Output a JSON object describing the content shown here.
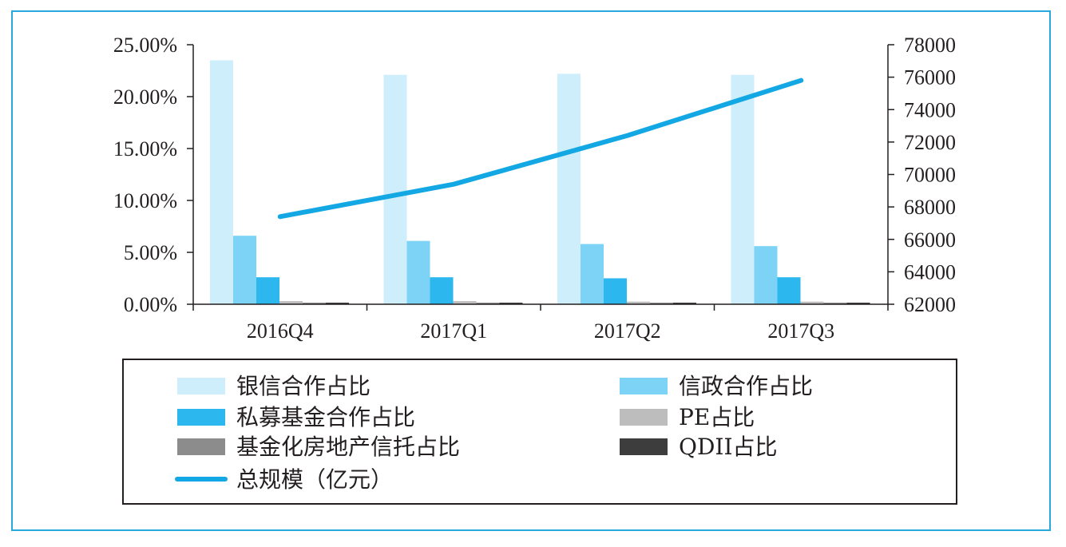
{
  "chart_data": {
    "type": "bar",
    "categories": [
      "2016Q4",
      "2017Q1",
      "2017Q2",
      "2017Q3"
    ],
    "y_left": {
      "ticks": [
        "25.00%",
        "20.00%",
        "15.00%",
        "10.00%",
        "5.00%",
        "0.00%"
      ],
      "ylim": [
        0,
        25
      ]
    },
    "y_right": {
      "ticks": [
        "78000",
        "76000",
        "74000",
        "72000",
        "70000",
        "68000",
        "66000",
        "64000",
        "62000"
      ],
      "ylim": [
        62000,
        78000
      ]
    },
    "series": [
      {
        "name": "银信合作占比",
        "type": "bar",
        "axis": "left",
        "color": "#cdeefa",
        "values": [
          23.5,
          22.1,
          22.2,
          22.1
        ]
      },
      {
        "name": "信政合作占比",
        "type": "bar",
        "axis": "left",
        "color": "#7dd3f6",
        "values": [
          6.6,
          6.1,
          5.8,
          5.6
        ]
      },
      {
        "name": "私募基金合作占比",
        "type": "bar",
        "axis": "left",
        "color": "#2cb7ee",
        "values": [
          2.6,
          2.6,
          2.5,
          2.6
        ]
      },
      {
        "name": "PE占比",
        "type": "bar",
        "axis": "left",
        "color": "#bdbdbd",
        "values": [
          0.3,
          0.3,
          0.25,
          0.25
        ]
      },
      {
        "name": "基金化房地产信托占比",
        "type": "bar",
        "axis": "left",
        "color": "#8c8c8c",
        "values": [
          0.1,
          0.1,
          0.1,
          0.1
        ]
      },
      {
        "name": "QDII占比",
        "type": "bar",
        "axis": "left",
        "color": "#3d3d3d",
        "values": [
          0.15,
          0.15,
          0.15,
          0.15
        ]
      },
      {
        "name": "总规模（亿元）",
        "type": "line",
        "axis": "right",
        "color": "#13a8e4",
        "values": [
          67400,
          69400,
          72400,
          75800
        ]
      }
    ]
  },
  "legend_order": [
    0,
    1,
    2,
    3,
    4,
    5,
    6
  ]
}
